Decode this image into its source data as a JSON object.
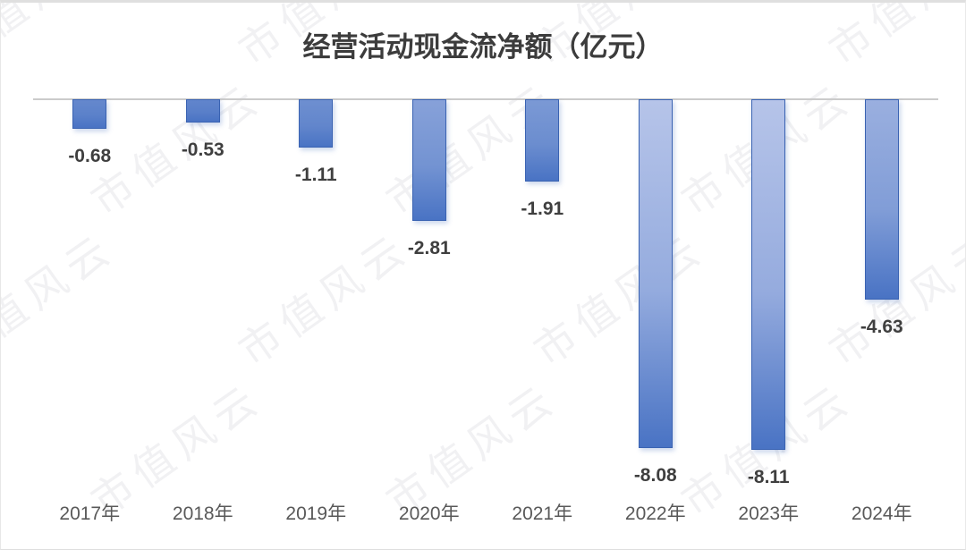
{
  "chart_data": {
    "type": "bar",
    "title": "经营活动现金流净额（亿元）",
    "categories": [
      "2017年",
      "2018年",
      "2019年",
      "2020年",
      "2021年",
      "2022年",
      "2023年",
      "2024年"
    ],
    "values": [
      -0.68,
      -0.53,
      -1.11,
      -2.81,
      -1.91,
      -8.08,
      -8.11,
      -4.63
    ],
    "data_labels": [
      "-0.68",
      "-0.53",
      "-1.11",
      "-2.81",
      "-1.91",
      "-8.08",
      "-8.11",
      "-4.63"
    ],
    "xlabel": "",
    "ylabel": "",
    "ylim": [
      -9,
      0
    ],
    "grid": false,
    "legend": false,
    "label_position": "outside-end-below",
    "series_color": "#4472c4"
  },
  "watermark": {
    "text": "市值风云"
  },
  "style": {
    "bar_bottom_color": "#4470c2",
    "bar_top_light_color": "#b6c4e9",
    "bar_border_color": "#3a63b2",
    "axis_line_color": "#cbcbcb",
    "title_color": "#3c3c3c",
    "value_label_color": "#3f3f3f",
    "axis_label_color": "#595959"
  }
}
